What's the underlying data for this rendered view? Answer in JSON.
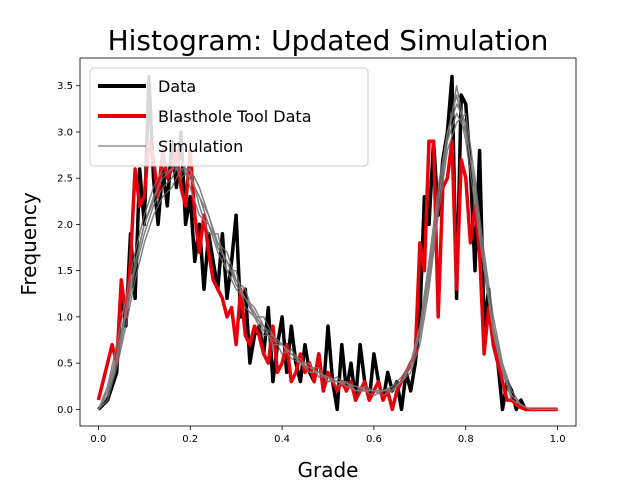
{
  "chart_data": {
    "type": "line",
    "title": "Histogram: Updated Simulation",
    "xlabel": "Grade",
    "ylabel": "Frequency",
    "xlim": [
      -0.04,
      1.04
    ],
    "ylim": [
      -0.18,
      3.8
    ],
    "x_ticks": [
      0.0,
      0.2,
      0.4,
      0.6,
      0.8,
      1.0
    ],
    "x_tick_labels": [
      "0.0",
      "0.2",
      "0.4",
      "0.6",
      "0.8",
      "1.0"
    ],
    "y_ticks": [
      0.0,
      0.5,
      1.0,
      1.5,
      2.0,
      2.5,
      3.0,
      3.5
    ],
    "y_tick_labels": [
      "0.0",
      "0.5",
      "1.0",
      "1.5",
      "2.0",
      "2.5",
      "3.0",
      "3.5"
    ],
    "grid": false,
    "legend_position": "upper-left",
    "series": [
      {
        "name": "Data",
        "color": "#000000",
        "x": [
          0.0,
          0.02,
          0.04,
          0.05,
          0.06,
          0.07,
          0.08,
          0.09,
          0.1,
          0.11,
          0.12,
          0.13,
          0.14,
          0.15,
          0.16,
          0.17,
          0.18,
          0.19,
          0.2,
          0.21,
          0.22,
          0.23,
          0.24,
          0.25,
          0.26,
          0.27,
          0.28,
          0.29,
          0.3,
          0.31,
          0.32,
          0.33,
          0.34,
          0.35,
          0.36,
          0.37,
          0.38,
          0.39,
          0.4,
          0.41,
          0.42,
          0.43,
          0.44,
          0.45,
          0.46,
          0.47,
          0.48,
          0.49,
          0.5,
          0.51,
          0.52,
          0.53,
          0.54,
          0.55,
          0.56,
          0.57,
          0.58,
          0.59,
          0.6,
          0.61,
          0.62,
          0.63,
          0.64,
          0.65,
          0.66,
          0.67,
          0.68,
          0.69,
          0.7,
          0.71,
          0.72,
          0.73,
          0.74,
          0.75,
          0.76,
          0.77,
          0.78,
          0.79,
          0.8,
          0.81,
          0.82,
          0.83,
          0.84,
          0.85,
          0.86,
          0.87,
          0.88,
          0.89,
          0.9,
          0.91,
          0.92,
          0.93,
          0.95,
          1.0
        ],
        "y": [
          0.0,
          0.1,
          0.4,
          1.3,
          0.9,
          1.9,
          1.2,
          2.6,
          2.0,
          3.6,
          2.5,
          2.0,
          2.6,
          2.2,
          2.9,
          2.4,
          3.0,
          2.0,
          2.3,
          1.6,
          2.0,
          1.3,
          1.9,
          1.6,
          1.3,
          1.9,
          1.2,
          1.6,
          2.1,
          1.0,
          1.3,
          0.5,
          0.8,
          0.9,
          0.6,
          1.1,
          0.3,
          0.7,
          1.0,
          0.4,
          0.9,
          0.5,
          0.3,
          0.7,
          0.4,
          0.3,
          0.6,
          0.2,
          0.9,
          0.3,
          0.0,
          0.7,
          0.2,
          0.5,
          0.1,
          0.7,
          0.3,
          0.1,
          0.6,
          0.3,
          0.1,
          0.4,
          0.2,
          0.3,
          0.0,
          0.4,
          0.2,
          0.5,
          1.0,
          2.3,
          2.0,
          2.9,
          2.1,
          2.7,
          3.0,
          3.6,
          1.2,
          3.4,
          3.3,
          2.6,
          1.5,
          2.8,
          0.9,
          1.3,
          0.7,
          0.5,
          0.0,
          0.3,
          0.2,
          0.0,
          0.1,
          0.0,
          0.0,
          0.0
        ]
      },
      {
        "name": "Blasthole Tool Data",
        "color": "#e8000b",
        "x": [
          0.0,
          0.01,
          0.02,
          0.03,
          0.04,
          0.05,
          0.06,
          0.07,
          0.08,
          0.09,
          0.1,
          0.11,
          0.12,
          0.13,
          0.14,
          0.15,
          0.16,
          0.17,
          0.18,
          0.19,
          0.2,
          0.21,
          0.22,
          0.23,
          0.24,
          0.25,
          0.26,
          0.27,
          0.28,
          0.29,
          0.3,
          0.31,
          0.32,
          0.33,
          0.34,
          0.35,
          0.36,
          0.37,
          0.38,
          0.39,
          0.4,
          0.41,
          0.42,
          0.43,
          0.44,
          0.45,
          0.46,
          0.47,
          0.48,
          0.49,
          0.5,
          0.51,
          0.52,
          0.53,
          0.54,
          0.55,
          0.56,
          0.57,
          0.58,
          0.59,
          0.6,
          0.61,
          0.62,
          0.63,
          0.64,
          0.65,
          0.66,
          0.67,
          0.68,
          0.69,
          0.7,
          0.71,
          0.72,
          0.73,
          0.74,
          0.75,
          0.76,
          0.77,
          0.78,
          0.79,
          0.8,
          0.81,
          0.82,
          0.83,
          0.84,
          0.85,
          0.86,
          0.87,
          0.88,
          0.89,
          0.9,
          0.91,
          0.92,
          0.93,
          0.94,
          0.95,
          1.0
        ],
        "y": [
          0.1,
          0.3,
          0.5,
          0.7,
          0.5,
          1.4,
          1.0,
          1.6,
          2.6,
          2.2,
          2.3,
          2.9,
          2.7,
          2.3,
          2.8,
          2.5,
          2.6,
          2.8,
          2.4,
          2.2,
          2.8,
          2.1,
          1.7,
          2.1,
          1.7,
          1.4,
          1.3,
          1.2,
          1.0,
          1.1,
          0.7,
          1.3,
          0.8,
          0.7,
          0.9,
          0.8,
          0.6,
          0.5,
          0.9,
          0.4,
          0.5,
          0.7,
          0.3,
          0.4,
          0.6,
          0.4,
          0.5,
          0.3,
          0.6,
          0.2,
          0.4,
          0.3,
          0.2,
          0.3,
          0.2,
          0.3,
          0.1,
          0.2,
          0.3,
          0.1,
          0.2,
          0.3,
          0.1,
          0.2,
          0.0,
          0.2,
          0.3,
          0.4,
          0.5,
          0.6,
          1.8,
          1.5,
          2.9,
          2.9,
          1.0,
          2.4,
          2.5,
          2.9,
          1.3,
          2.7,
          2.5,
          1.8,
          2.2,
          1.7,
          0.6,
          1.1,
          0.7,
          0.5,
          0.3,
          0.1,
          0.1,
          0.05,
          0.02,
          0.0,
          0.0,
          0.0,
          0.0
        ]
      },
      {
        "name": "Simulation",
        "color": "#808080",
        "x": [
          0.0,
          0.02,
          0.04,
          0.06,
          0.08,
          0.1,
          0.12,
          0.14,
          0.16,
          0.18,
          0.2,
          0.22,
          0.24,
          0.26,
          0.28,
          0.3,
          0.32,
          0.34,
          0.36,
          0.38,
          0.4,
          0.42,
          0.44,
          0.46,
          0.48,
          0.5,
          0.52,
          0.54,
          0.56,
          0.58,
          0.6,
          0.62,
          0.64,
          0.66,
          0.68,
          0.7,
          0.72,
          0.74,
          0.76,
          0.78,
          0.8,
          0.82,
          0.84,
          0.86,
          0.88,
          0.9,
          0.92,
          0.94,
          0.96,
          0.98,
          1.0
        ],
        "ensemble": [
          [
            0.0,
            0.2,
            0.6,
            1.1,
            1.6,
            2.0,
            2.3,
            2.5,
            2.6,
            2.6,
            2.5,
            2.3,
            2.0,
            1.8,
            1.6,
            1.4,
            1.2,
            1.0,
            0.9,
            0.8,
            0.7,
            0.6,
            0.5,
            0.45,
            0.4,
            0.35,
            0.3,
            0.28,
            0.25,
            0.22,
            0.2,
            0.2,
            0.22,
            0.3,
            0.45,
            0.8,
            1.4,
            2.2,
            2.9,
            3.2,
            3.0,
            2.4,
            1.6,
            0.9,
            0.45,
            0.15,
            0.05,
            0.0,
            0.0,
            0.0,
            0.0
          ],
          [
            0.0,
            0.15,
            0.5,
            1.0,
            1.5,
            1.9,
            2.2,
            2.4,
            2.5,
            2.7,
            2.4,
            2.1,
            2.0,
            1.7,
            1.5,
            1.3,
            1.2,
            1.1,
            0.9,
            0.7,
            0.7,
            0.6,
            0.55,
            0.4,
            0.4,
            0.3,
            0.3,
            0.25,
            0.2,
            0.2,
            0.15,
            0.2,
            0.25,
            0.35,
            0.5,
            0.9,
            1.6,
            2.4,
            3.0,
            3.4,
            2.9,
            2.2,
            1.5,
            0.8,
            0.4,
            0.1,
            0.05,
            0.0,
            0.0,
            0.0,
            0.0
          ],
          [
            0.0,
            0.25,
            0.7,
            1.2,
            1.7,
            2.1,
            2.4,
            2.6,
            2.7,
            2.5,
            2.6,
            2.2,
            1.9,
            1.9,
            1.5,
            1.5,
            1.1,
            1.0,
            0.8,
            0.8,
            0.6,
            0.65,
            0.5,
            0.5,
            0.35,
            0.35,
            0.25,
            0.3,
            0.2,
            0.25,
            0.2,
            0.15,
            0.2,
            0.3,
            0.4,
            0.7,
            1.3,
            2.1,
            2.8,
            3.1,
            3.2,
            2.5,
            1.7,
            1.0,
            0.5,
            0.2,
            0.05,
            0.0,
            0.0,
            0.0,
            0.0
          ],
          [
            0.0,
            0.1,
            0.45,
            0.9,
            1.4,
            1.8,
            2.1,
            2.3,
            2.4,
            2.6,
            2.6,
            2.4,
            2.1,
            1.8,
            1.7,
            1.4,
            1.3,
            1.0,
            1.0,
            0.8,
            0.7,
            0.55,
            0.5,
            0.45,
            0.45,
            0.3,
            0.35,
            0.25,
            0.25,
            0.2,
            0.2,
            0.2,
            0.2,
            0.3,
            0.5,
            0.9,
            1.5,
            2.3,
            3.0,
            3.3,
            3.1,
            2.3,
            1.5,
            0.85,
            0.4,
            0.15,
            0.05,
            0.0,
            0.0,
            0.0,
            0.0
          ],
          [
            0.0,
            0.2,
            0.55,
            1.05,
            1.55,
            2.0,
            2.25,
            2.55,
            2.6,
            2.7,
            2.5,
            2.3,
            2.1,
            1.75,
            1.6,
            1.35,
            1.2,
            1.05,
            0.85,
            0.75,
            0.7,
            0.6,
            0.5,
            0.4,
            0.4,
            0.35,
            0.3,
            0.3,
            0.2,
            0.2,
            0.2,
            0.2,
            0.25,
            0.3,
            0.45,
            0.85,
            1.45,
            2.25,
            2.9,
            3.5,
            3.0,
            2.4,
            1.6,
            0.9,
            0.45,
            0.15,
            0.05,
            0.0,
            0.0,
            0.0,
            0.0
          ]
        ]
      }
    ]
  }
}
